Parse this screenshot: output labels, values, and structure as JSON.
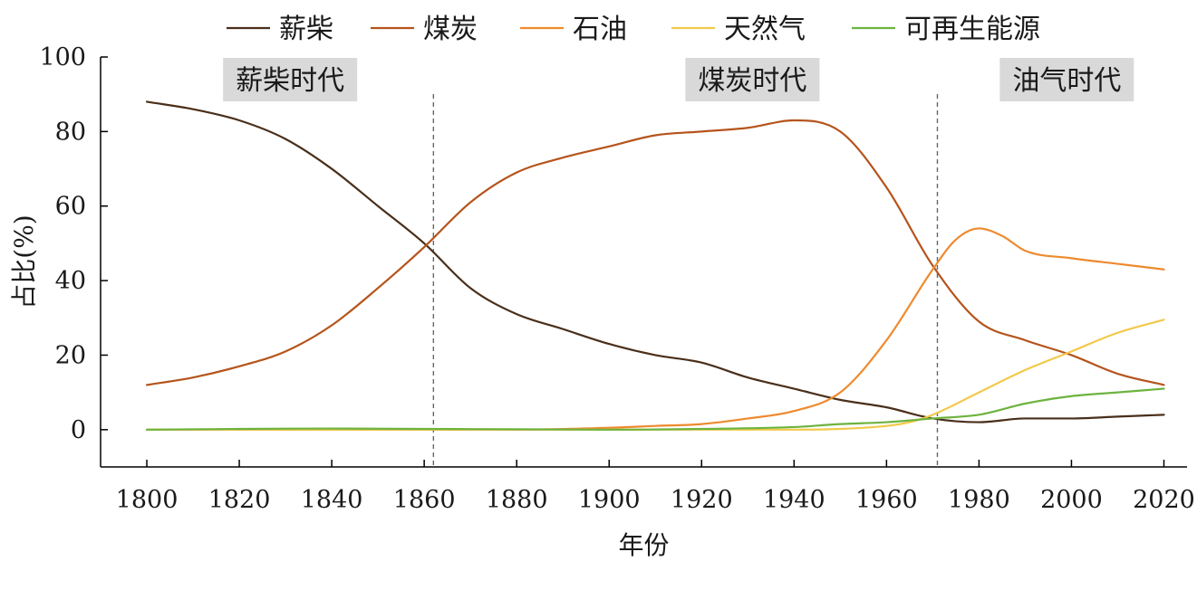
{
  "chart_data": {
    "type": "line",
    "xlabel": "年份",
    "ylabel": "占比(%)",
    "xlim": [
      1790,
      2025
    ],
    "ylim": [
      -10,
      100
    ],
    "xticks": [
      "1800",
      "1820",
      "1840",
      "1860",
      "1880",
      "1900",
      "1920",
      "1940",
      "1960",
      "1980",
      "2000",
      "2020"
    ],
    "yticks": [
      "0",
      "20",
      "40",
      "60",
      "80",
      "100"
    ],
    "grid": false,
    "legend_position": "top",
    "eras": [
      {
        "label": "薪柴时代",
        "x_center": 1831
      },
      {
        "label": "煤炭时代",
        "x_center": 1931
      },
      {
        "label": "油气时代",
        "x_center": 1999
      }
    ],
    "vlines": [
      1862,
      1971
    ],
    "series": [
      {
        "name": "薪柴",
        "color": "#4a2f1a",
        "x": [
          1800,
          1810,
          1820,
          1830,
          1840,
          1850,
          1860,
          1870,
          1880,
          1890,
          1900,
          1910,
          1920,
          1930,
          1940,
          1950,
          1960,
          1970,
          1980,
          1990,
          2000,
          2010,
          2020
        ],
        "y": [
          88,
          86,
          83,
          78,
          70,
          60,
          50,
          38,
          31,
          27,
          23,
          20,
          18,
          14,
          11,
          8,
          6,
          3,
          2,
          3,
          3,
          3.5,
          4
        ]
      },
      {
        "name": "煤炭",
        "color": "#b5541c",
        "x": [
          1800,
          1810,
          1820,
          1830,
          1840,
          1850,
          1860,
          1870,
          1880,
          1890,
          1900,
          1910,
          1920,
          1930,
          1940,
          1950,
          1960,
          1970,
          1980,
          1990,
          2000,
          2010,
          2020
        ],
        "y": [
          12,
          14,
          17,
          21,
          28,
          38,
          49,
          61,
          69,
          73,
          76,
          79,
          80,
          81,
          83,
          80,
          65,
          44,
          29,
          24,
          20,
          15,
          12
        ]
      },
      {
        "name": "石油",
        "color": "#ee8a2e",
        "x": [
          1800,
          1860,
          1880,
          1900,
          1910,
          1920,
          1930,
          1940,
          1950,
          1960,
          1970,
          1975,
          1980,
          1985,
          1990,
          2000,
          2010,
          2020
        ],
        "y": [
          0,
          0,
          0,
          0.5,
          1,
          1.5,
          3,
          5,
          10,
          24,
          43,
          51,
          54,
          52,
          48,
          46,
          44.5,
          43
        ]
      },
      {
        "name": "天然气",
        "color": "#f2c94a",
        "x": [
          1800,
          1900,
          1940,
          1950,
          1960,
          1965,
          1970,
          1980,
          1990,
          2000,
          2010,
          2020
        ],
        "y": [
          0,
          0,
          0,
          0.2,
          1,
          2,
          4,
          10,
          16,
          21,
          26,
          29.5
        ]
      },
      {
        "name": "可再生能源",
        "color": "#6db33f",
        "x": [
          1800,
          1820,
          1840,
          1860,
          1880,
          1900,
          1920,
          1940,
          1950,
          1960,
          1970,
          1980,
          1990,
          2000,
          2010,
          2020
        ],
        "y": [
          0,
          0.2,
          0.3,
          0.2,
          0.1,
          0,
          0.2,
          0.7,
          1.5,
          2,
          3,
          4,
          7,
          9,
          10,
          11
        ]
      }
    ]
  }
}
